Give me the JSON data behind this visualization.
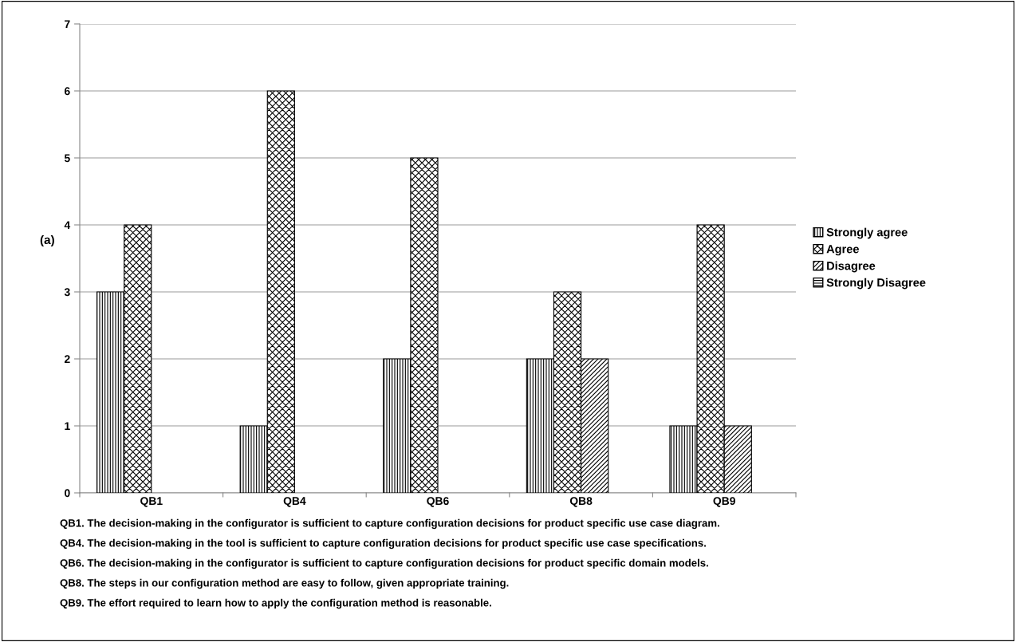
{
  "chart_data": {
    "type": "bar",
    "categories": [
      "QB1",
      "QB4",
      "QB6",
      "QB8",
      "QB9"
    ],
    "series": [
      {
        "name": "Strongly agree",
        "color": "#000000",
        "values": [
          3,
          1,
          2,
          2,
          1
        ]
      },
      {
        "name": "Agree",
        "color": "#000000",
        "values": [
          4,
          6,
          5,
          3,
          4
        ]
      },
      {
        "name": "Disagree",
        "color": "#000000",
        "values": [
          0,
          0,
          0,
          2,
          1
        ]
      },
      {
        "name": "Strongly Disagree",
        "color": "#000000",
        "values": [
          0,
          0,
          0,
          0,
          0
        ]
      }
    ],
    "ylim": [
      0,
      7
    ],
    "yticks": [
      0,
      1,
      2,
      3,
      4,
      5,
      6,
      7
    ],
    "grid": "y",
    "legend": "right",
    "annotations": [
      "(a)",
      "QB1. The decision-making in the configurator is sufficient to capture configuration decisions for product specific use case diagram.",
      "QB4. The decision-making in the tool is sufficient to capture configuration decisions for product specific use case specifications.",
      "QB6. The decision-making in the configurator is sufficient to capture configuration decisions for product specific domain models.",
      "QB8. The steps in our configuration method are easy to follow, given appropriate training.",
      "QB9. The effort required to learn how to apply the configuration method is reasonable."
    ]
  }
}
